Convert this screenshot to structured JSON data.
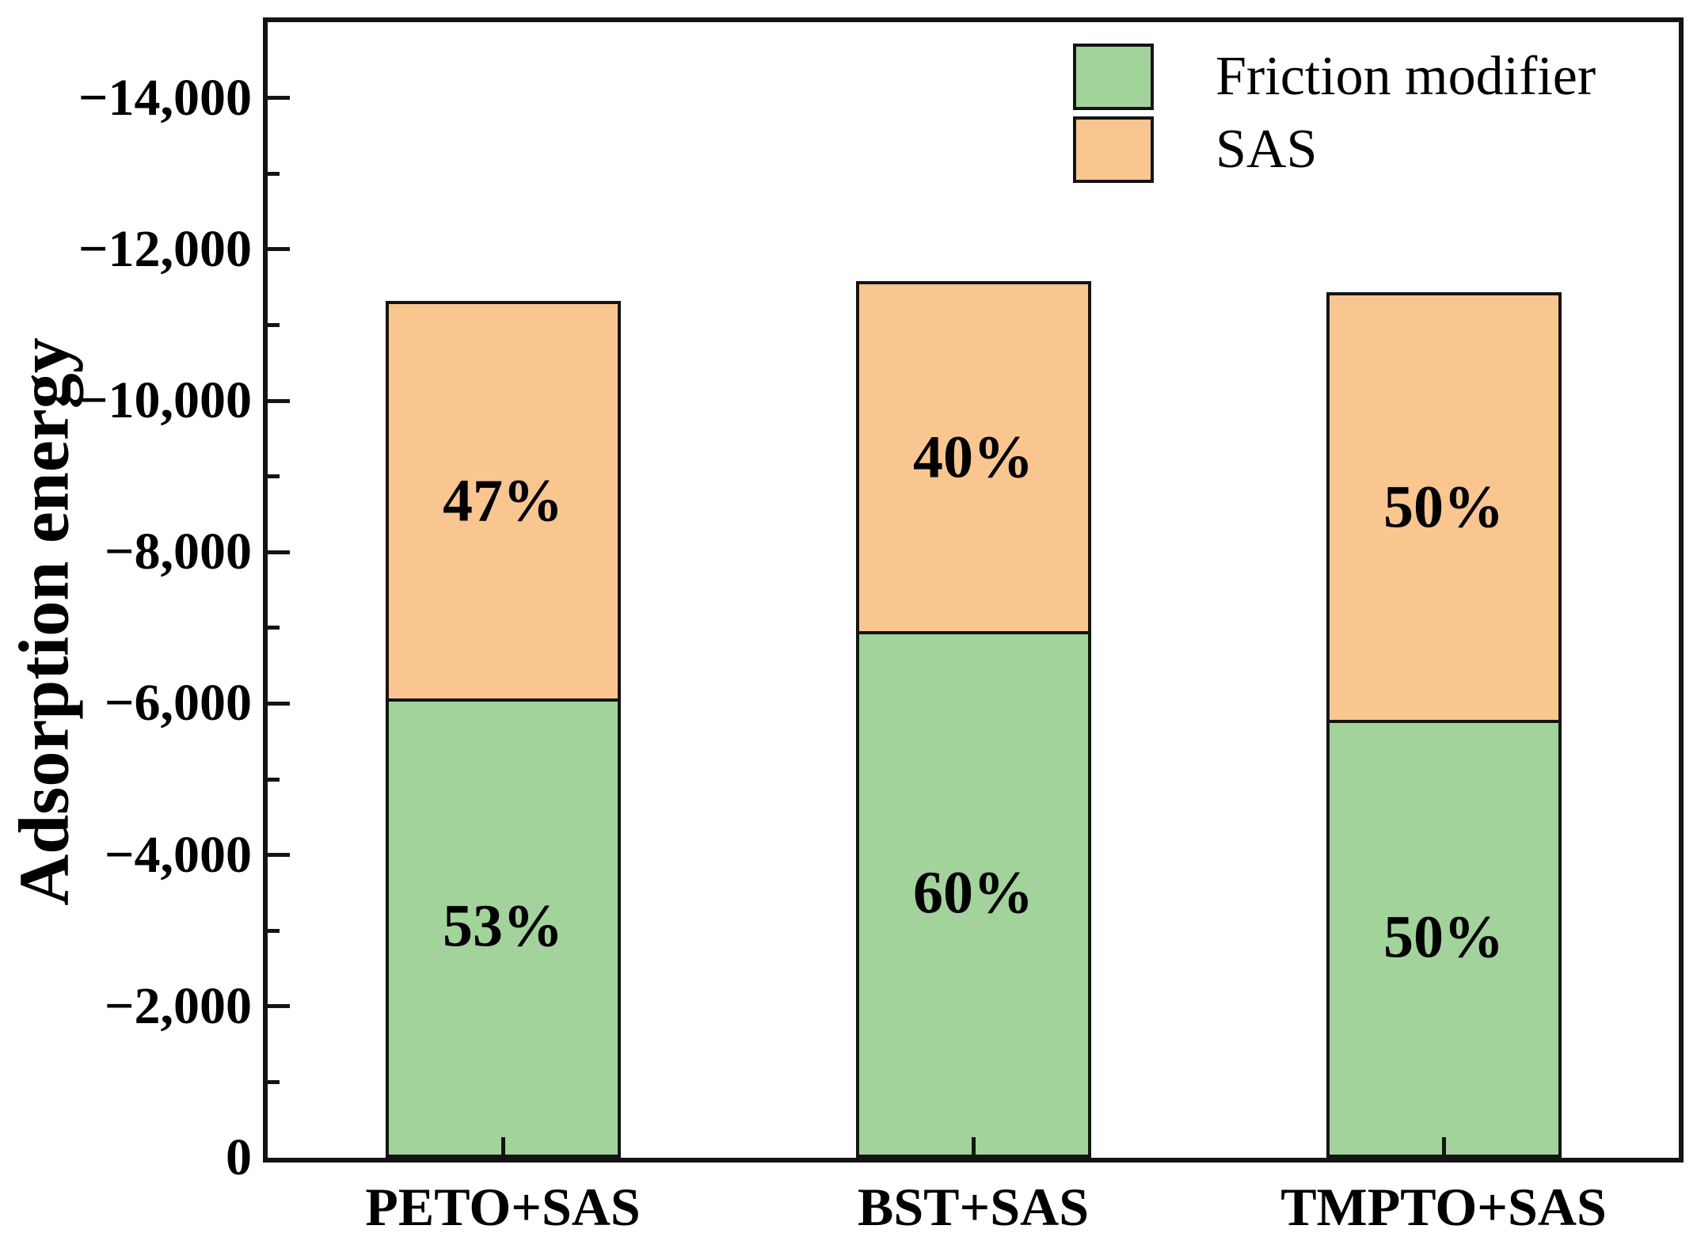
{
  "figure": {
    "background": "#ffffff",
    "frame_color": "#141414",
    "text_color": "#000000"
  },
  "chart_data": {
    "type": "bar",
    "stacked": true,
    "title": "",
    "xlabel": "",
    "ylabel": "Adsorption energy",
    "categories": [
      "PETO+SAS",
      "BST+SAS",
      "TMPTO+SAS"
    ],
    "series": [
      {
        "name": "Friction modifier",
        "color": "#A2D39B",
        "values": [
          -6030,
          -6910,
          -5740
        ],
        "percent_labels": [
          "53%",
          "60%",
          "50%"
        ]
      },
      {
        "name": "SAS",
        "color": "#FAC690",
        "values": [
          -5290,
          -4670,
          -5690
        ],
        "percent_labels": [
          "47%",
          "40%",
          "50%"
        ]
      }
    ],
    "totals": [
      -11320,
      -11580,
      -11430
    ],
    "ylim": [
      0,
      -15000
    ],
    "y_major_ticks": [
      0,
      -2000,
      -4000,
      -6000,
      -8000,
      -10000,
      -12000,
      -14000
    ],
    "y_tick_labels": [
      "0",
      "−2,000",
      "−4,000",
      "−6,000",
      "−8,000",
      "−10,000",
      "−12,000",
      "−14,000"
    ],
    "y_minor_step": 1000,
    "grid": false,
    "legend_position": "top-right-inside",
    "bar_border_color": "#141414"
  },
  "legend": {
    "items": [
      {
        "label": "Friction modifier",
        "swatch_color": "#A2D39B"
      },
      {
        "label": "SAS",
        "swatch_color": "#FAC690"
      }
    ]
  }
}
